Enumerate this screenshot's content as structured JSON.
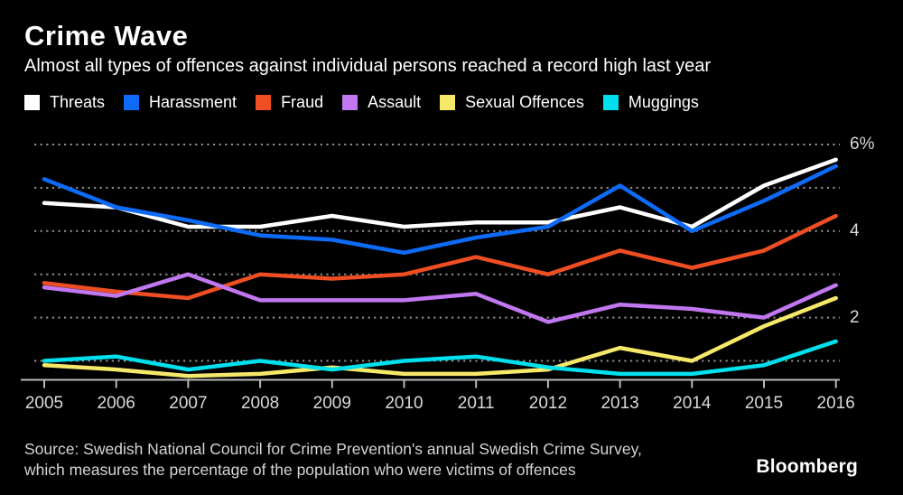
{
  "header": {
    "title": "Crime Wave",
    "subtitle": "Almost all types of offences against individual persons reached a record high last year"
  },
  "chart_data": {
    "type": "line",
    "title": "Crime Wave",
    "subtitle": "Almost all types of offences against individual persons reached a record high last year",
    "unit": "% of population victimised",
    "categories": [
      2005,
      2006,
      2007,
      2008,
      2009,
      2010,
      2011,
      2012,
      2013,
      2014,
      2015,
      2016
    ],
    "series": [
      {
        "name": "Threats",
        "color": "#ffffff",
        "values": [
          4.65,
          4.55,
          4.1,
          4.1,
          4.35,
          4.1,
          4.2,
          4.2,
          4.55,
          4.1,
          5.05,
          5.65
        ]
      },
      {
        "name": "Harassment",
        "color": "#0d6bf8",
        "values": [
          5.2,
          4.55,
          4.25,
          3.9,
          3.8,
          3.5,
          3.85,
          4.1,
          5.05,
          4.0,
          4.7,
          5.5
        ]
      },
      {
        "name": "Fraud",
        "color": "#ef4e23",
        "values": [
          2.8,
          2.6,
          2.45,
          3.0,
          2.9,
          3.0,
          3.4,
          3.0,
          3.55,
          3.15,
          3.55,
          4.35
        ]
      },
      {
        "name": "Assault",
        "color": "#c077ef",
        "values": [
          2.7,
          2.5,
          3.0,
          2.4,
          2.4,
          2.4,
          2.55,
          1.9,
          2.3,
          2.2,
          2.0,
          2.75
        ]
      },
      {
        "name": "Sexual Offences",
        "color": "#f6e96a",
        "values": [
          0.9,
          0.8,
          0.65,
          0.7,
          0.85,
          0.7,
          0.7,
          0.8,
          1.3,
          1.0,
          1.8,
          2.45
        ]
      },
      {
        "name": "Muggings",
        "color": "#00dfee",
        "values": [
          1.0,
          1.1,
          0.8,
          1.0,
          0.8,
          1.0,
          1.1,
          0.85,
          0.7,
          0.7,
          0.9,
          1.45
        ]
      }
    ],
    "gridline_values": [
      6,
      5,
      4,
      3,
      2,
      1
    ],
    "ytick_labels": [
      {
        "value": 6,
        "label": "6%"
      },
      {
        "value": 4,
        "label": "4"
      },
      {
        "value": 2,
        "label": "2"
      }
    ],
    "ylim": [
      0.55,
      6.3
    ],
    "grid": "dotted-horizontal",
    "legend_position": "top"
  },
  "footer": {
    "source_line1": "Source: Swedish National Council for Crime Prevention's annual Swedish Crime Survey,",
    "source_line2": "which measures the percentage of the population who were victims of offences",
    "brand": "Bloomberg"
  }
}
